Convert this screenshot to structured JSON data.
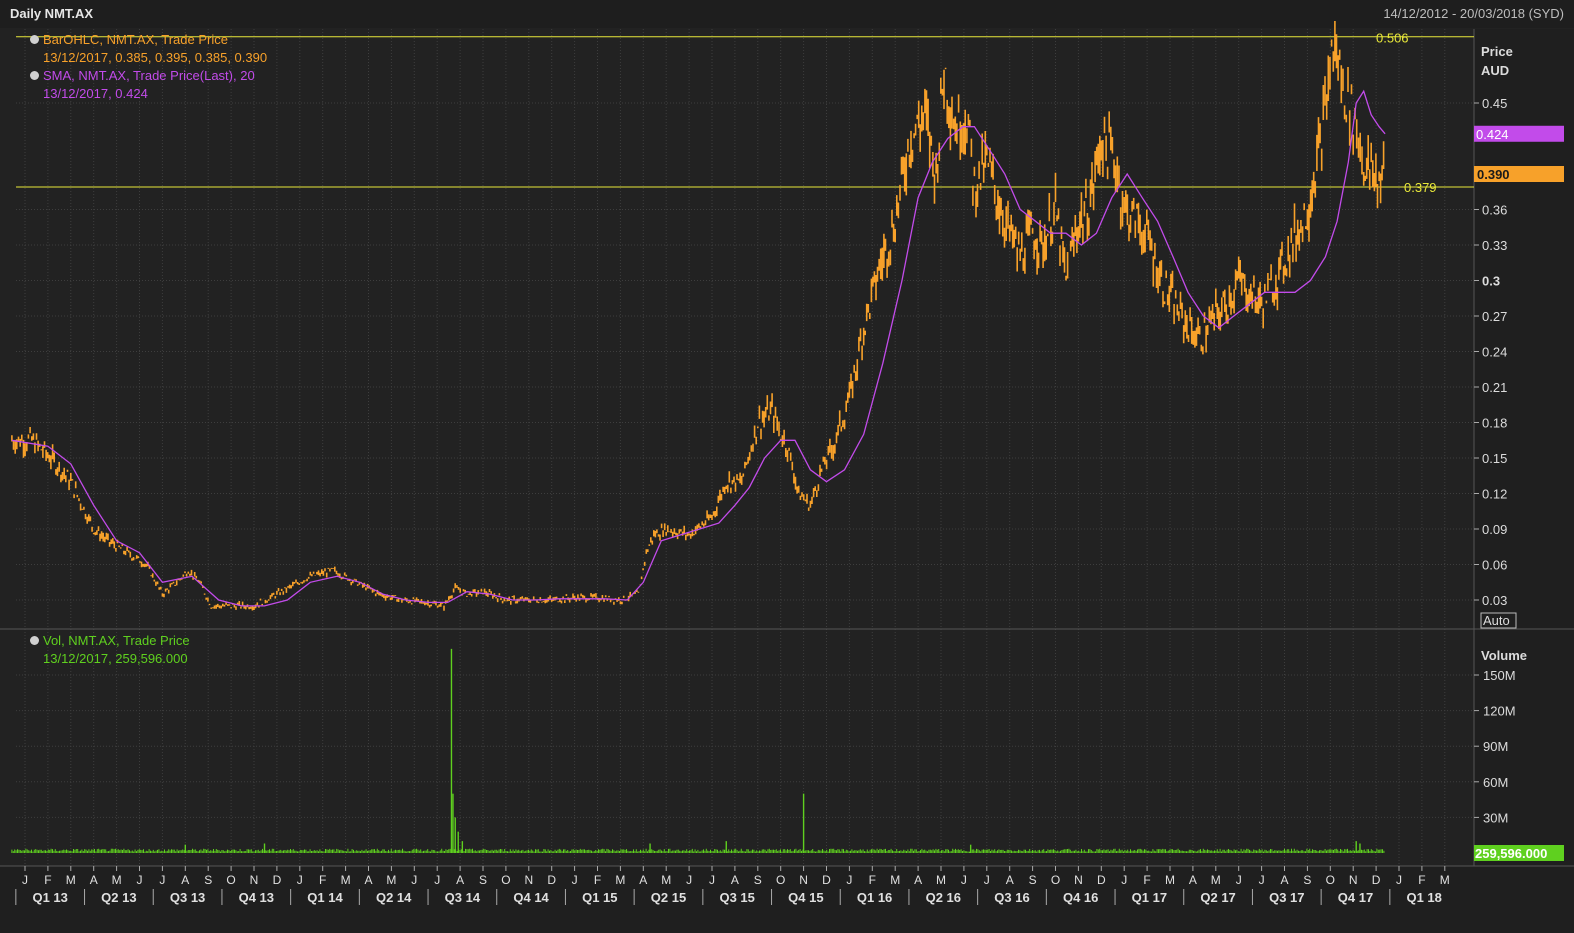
{
  "header": {
    "title": "Daily NMT.AX",
    "date_range": "14/12/2012 - 20/03/2018 (SYD)"
  },
  "legend": {
    "price_series": "BarOHLC, NMT.AX, Trade Price",
    "price_values": "13/12/2017, 0.385, 0.395, 0.385, 0.390",
    "sma_series": "SMA, NMT.AX, Trade Price(Last),  20",
    "sma_values": "13/12/2017, 0.424",
    "vol_series": "Vol, NMT.AX, Trade Price",
    "vol_values": "13/12/2017, 259,596.000"
  },
  "axis": {
    "price_title_1": "Price",
    "price_title_2": "AUD",
    "volume_title": "Volume",
    "auto_label": "Auto"
  },
  "colors": {
    "background": "#222222",
    "grid": "#3e3e3e",
    "price": "#f7a12a",
    "sma": "#c24bea",
    "volume": "#5fd01f",
    "hline": "#e8e83a",
    "text": "#dcdcdc"
  },
  "chart_data": [
    {
      "type": "line",
      "title": "Daily NMT.AX",
      "ylabel": "Price AUD",
      "ylim": [
        0.01,
        0.5
      ],
      "yticks": [
        "0.03",
        "0.06",
        "0.09",
        "0.12",
        "0.15",
        "0.18",
        "0.21",
        "0.24",
        "0.27",
        "0.3",
        "0.33",
        "0.36",
        "0.45"
      ],
      "yticks_values": [
        0.03,
        0.06,
        0.09,
        0.12,
        0.15,
        0.18,
        0.21,
        0.24,
        0.27,
        0.3,
        0.33,
        0.36,
        0.45
      ],
      "price_tag": "0.390",
      "sma_tag": "0.424",
      "hlines": [
        {
          "value": 0.506,
          "label": "0.506"
        },
        {
          "value": 0.379,
          "label": "0.379"
        }
      ],
      "series": [
        {
          "name": "BarOHLC, NMT.AX, Trade Price",
          "dates": [
            "2012-12-14",
            "2013-01-10",
            "2013-02-05",
            "2013-03-01",
            "2013-04-01",
            "2013-04-20",
            "2013-05-15",
            "2013-06-10",
            "2013-07-01",
            "2013-07-20",
            "2013-08-05",
            "2013-08-20",
            "2013-09-05",
            "2013-10-01",
            "2013-11-01",
            "2013-12-01",
            "2014-01-15",
            "2014-02-15",
            "2014-03-15",
            "2014-04-15",
            "2014-05-15",
            "2014-06-15",
            "2014-07-10",
            "2014-07-25",
            "2014-08-10",
            "2014-09-01",
            "2014-10-01",
            "2014-11-01",
            "2014-12-01",
            "2015-01-01",
            "2015-02-01",
            "2015-03-01",
            "2015-03-25",
            "2015-04-05",
            "2015-04-15",
            "2015-05-01",
            "2015-06-01",
            "2015-07-01",
            "2015-07-20",
            "2015-08-10",
            "2015-09-01",
            "2015-09-20",
            "2015-10-01",
            "2015-10-10",
            "2015-10-25",
            "2015-11-10",
            "2015-11-25",
            "2015-12-10",
            "2016-01-01",
            "2016-01-20",
            "2016-02-10",
            "2016-03-01",
            "2016-03-20",
            "2016-04-10",
            "2016-04-25",
            "2016-05-05",
            "2016-05-20",
            "2016-06-05",
            "2016-06-15",
            "2016-07-01",
            "2016-07-20",
            "2016-08-01",
            "2016-08-15",
            "2016-09-01",
            "2016-09-15",
            "2016-10-01",
            "2016-10-15",
            "2016-11-01",
            "2016-11-15",
            "2016-12-01",
            "2016-12-20",
            "2017-01-01",
            "2017-01-20",
            "2017-02-05",
            "2017-02-20",
            "2017-03-15",
            "2017-04-10",
            "2017-05-01",
            "2017-05-15",
            "2017-06-01",
            "2017-06-15",
            "2017-07-01",
            "2017-07-20",
            "2017-08-10",
            "2017-09-01",
            "2017-09-20",
            "2017-10-05",
            "2017-10-20",
            "2017-11-01",
            "2017-11-08",
            "2017-11-15",
            "2017-11-25",
            "2017-12-05",
            "2017-12-13"
          ],
          "values": [
            0.165,
            0.165,
            0.15,
            0.13,
            0.09,
            0.08,
            0.07,
            0.06,
            0.035,
            0.045,
            0.055,
            0.045,
            0.025,
            0.025,
            0.025,
            0.035,
            0.05,
            0.055,
            0.045,
            0.035,
            0.03,
            0.028,
            0.025,
            0.04,
            0.035,
            0.037,
            0.03,
            0.03,
            0.03,
            0.032,
            0.032,
            0.03,
            0.035,
            0.07,
            0.085,
            0.09,
            0.085,
            0.1,
            0.13,
            0.13,
            0.18,
            0.19,
            0.17,
            0.16,
            0.12,
            0.11,
            0.14,
            0.16,
            0.2,
            0.26,
            0.31,
            0.35,
            0.42,
            0.44,
            0.39,
            0.48,
            0.43,
            0.44,
            0.38,
            0.4,
            0.36,
            0.34,
            0.32,
            0.34,
            0.33,
            0.36,
            0.3,
            0.35,
            0.36,
            0.42,
            0.4,
            0.36,
            0.35,
            0.33,
            0.3,
            0.27,
            0.25,
            0.27,
            0.28,
            0.3,
            0.29,
            0.28,
            0.3,
            0.33,
            0.36,
            0.42,
            0.5,
            0.46,
            0.44,
            0.42,
            0.4,
            0.39,
            0.385,
            0.39
          ]
        },
        {
          "name": "SMA, NMT.AX, Trade Price(Last),  20",
          "dates": [
            "2012-12-14",
            "2013-02-01",
            "2013-03-01",
            "2013-04-01",
            "2013-05-01",
            "2013-06-01",
            "2013-07-01",
            "2013-08-10",
            "2013-09-15",
            "2013-10-15",
            "2013-11-15",
            "2013-12-15",
            "2014-01-15",
            "2014-02-20",
            "2014-03-20",
            "2014-04-20",
            "2014-05-20",
            "2014-06-20",
            "2014-07-15",
            "2014-08-10",
            "2014-09-10",
            "2014-10-10",
            "2014-11-10",
            "2014-12-10",
            "2015-01-10",
            "2015-02-10",
            "2015-03-10",
            "2015-04-01",
            "2015-04-25",
            "2015-05-20",
            "2015-06-15",
            "2015-07-10",
            "2015-08-01",
            "2015-08-20",
            "2015-09-10",
            "2015-10-01",
            "2015-10-20",
            "2015-11-10",
            "2015-12-01",
            "2015-12-25",
            "2016-01-20",
            "2016-02-15",
            "2016-03-10",
            "2016-04-01",
            "2016-04-20",
            "2016-05-10",
            "2016-05-30",
            "2016-06-15",
            "2016-07-05",
            "2016-07-25",
            "2016-08-15",
            "2016-09-05",
            "2016-09-25",
            "2016-10-15",
            "2016-11-05",
            "2016-11-25",
            "2016-12-15",
            "2017-01-05",
            "2017-01-25",
            "2017-02-15",
            "2017-03-05",
            "2017-03-25",
            "2017-04-15",
            "2017-05-05",
            "2017-05-25",
            "2017-06-15",
            "2017-07-05",
            "2017-07-25",
            "2017-08-15",
            "2017-09-05",
            "2017-09-25",
            "2017-10-10",
            "2017-10-25",
            "2017-11-05",
            "2017-11-15",
            "2017-11-25",
            "2017-12-05",
            "2017-12-13"
          ],
          "values": [
            0.165,
            0.16,
            0.145,
            0.11,
            0.08,
            0.07,
            0.045,
            0.05,
            0.03,
            0.025,
            0.025,
            0.03,
            0.045,
            0.05,
            0.045,
            0.035,
            0.03,
            0.028,
            0.028,
            0.037,
            0.035,
            0.03,
            0.03,
            0.031,
            0.031,
            0.031,
            0.03,
            0.045,
            0.08,
            0.085,
            0.09,
            0.095,
            0.11,
            0.125,
            0.15,
            0.165,
            0.165,
            0.14,
            0.13,
            0.14,
            0.17,
            0.23,
            0.3,
            0.37,
            0.4,
            0.42,
            0.43,
            0.43,
            0.41,
            0.39,
            0.36,
            0.35,
            0.34,
            0.34,
            0.33,
            0.34,
            0.37,
            0.39,
            0.37,
            0.35,
            0.32,
            0.29,
            0.27,
            0.26,
            0.27,
            0.28,
            0.29,
            0.29,
            0.29,
            0.3,
            0.32,
            0.35,
            0.4,
            0.45,
            0.46,
            0.44,
            0.43,
            0.424
          ]
        }
      ]
    },
    {
      "type": "bar",
      "title": "Vol, NMT.AX, Trade Price",
      "ylabel": "Volume",
      "ylim": [
        0,
        170000000
      ],
      "yticks": [
        "30M",
        "60M",
        "90M",
        "120M",
        "150M"
      ],
      "yticks_values": [
        30000000,
        60000000,
        90000000,
        120000000,
        150000000
      ],
      "last_value_tag": "259,596.000",
      "baseline_volume": 2000000,
      "spikes": [
        {
          "date": "2013-08-01",
          "value": 7000000
        },
        {
          "date": "2013-11-15",
          "value": 8000000
        },
        {
          "date": "2014-07-20",
          "value": 172000000
        },
        {
          "date": "2014-07-22",
          "value": 50000000
        },
        {
          "date": "2014-07-25",
          "value": 30000000
        },
        {
          "date": "2014-07-29",
          "value": 18000000
        },
        {
          "date": "2014-08-04",
          "value": 10000000
        },
        {
          "date": "2015-04-10",
          "value": 8000000
        },
        {
          "date": "2015-07-20",
          "value": 10000000
        },
        {
          "date": "2015-11-01",
          "value": 50000000
        },
        {
          "date": "2016-06-10",
          "value": 7000000
        },
        {
          "date": "2017-11-05",
          "value": 10000000
        },
        {
          "date": "2017-11-10",
          "value": 8000000
        }
      ]
    }
  ],
  "time_axis": {
    "months": [
      "J",
      "F",
      "M",
      "A",
      "M",
      "J",
      "J",
      "A",
      "S",
      "O",
      "N",
      "D",
      "J",
      "F",
      "M",
      "A",
      "M",
      "J",
      "J",
      "A",
      "S",
      "O",
      "N",
      "D",
      "J",
      "F",
      "M",
      "A",
      "M",
      "J",
      "J",
      "A",
      "S",
      "O",
      "N",
      "D",
      "J",
      "F",
      "M",
      "A",
      "M",
      "J",
      "J",
      "A",
      "S",
      "O",
      "N",
      "D",
      "J",
      "F",
      "M",
      "A",
      "M",
      "J",
      "J",
      "A",
      "S",
      "O",
      "N",
      "D",
      "J",
      "F",
      "M"
    ],
    "quarters": [
      "Q1 13",
      "Q2 13",
      "Q3 13",
      "Q4 13",
      "Q1 14",
      "Q2 14",
      "Q3 14",
      "Q4 14",
      "Q1 15",
      "Q2 15",
      "Q3 15",
      "Q4 15",
      "Q1 16",
      "Q2 16",
      "Q3 16",
      "Q4 16",
      "Q1 17",
      "Q2 17",
      "Q3 17",
      "Q4 17",
      "Q1 18"
    ]
  }
}
